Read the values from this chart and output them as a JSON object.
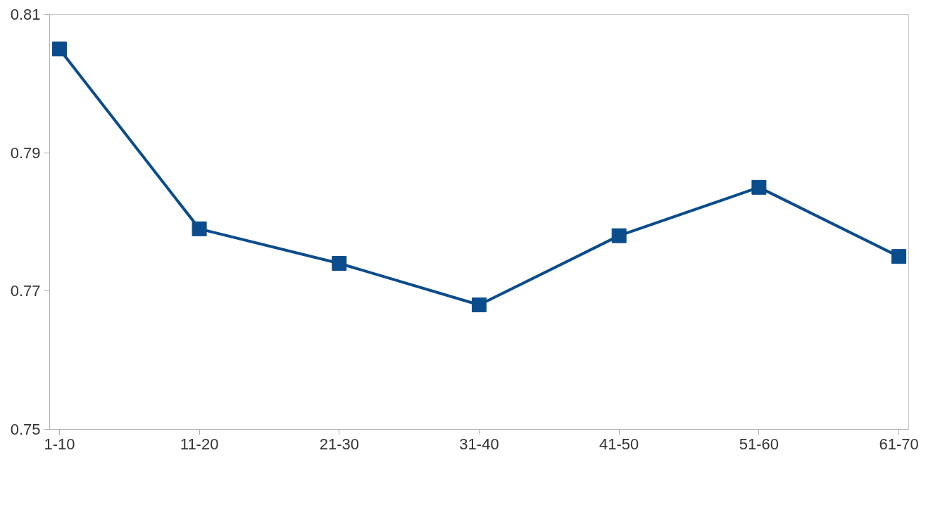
{
  "chart_data": {
    "type": "line",
    "categories": [
      "1-10",
      "11-20",
      "21-30",
      "31-40",
      "41-50",
      "51-60",
      "61-70"
    ],
    "series": [
      {
        "color": "#0b4c8c",
        "values": [
          0.805,
          0.779,
          0.774,
          0.768,
          0.778,
          0.785,
          0.775
        ]
      }
    ],
    "ylim": [
      0.75,
      0.81
    ],
    "yticks": [
      0.75,
      0.77,
      0.79,
      0.81
    ],
    "marker": "square",
    "line_style": "solid"
  }
}
